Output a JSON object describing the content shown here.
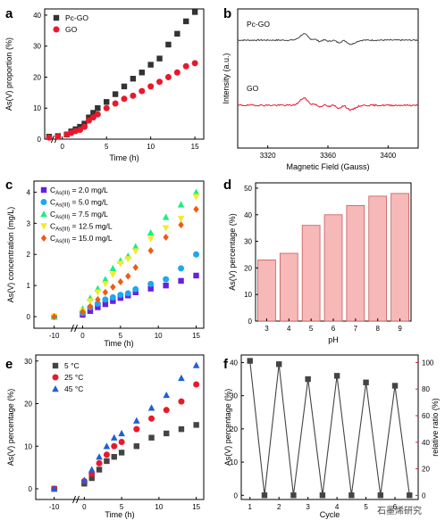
{
  "watermark": "石墨烯研究",
  "colors": {
    "black": "#333333",
    "red": "#e8192c",
    "blue": "#1f5fd6",
    "purple": "#6a1fe0",
    "cyan": "#1ea8f0",
    "green": "#19f07d",
    "yellow": "#f7e928",
    "orange": "#f25a12",
    "bar": "#f7b8b8",
    "bar_edge": "#c65b5b",
    "gray": "#444444"
  },
  "chart_data": [
    {
      "panel": "a",
      "type": "scatter",
      "xlabel": "Time (h)",
      "ylabel": "As(V) proportion (%)",
      "xlim": [
        -2,
        16
      ],
      "ylim": [
        0,
        42
      ],
      "xticks": [
        "0",
        "5",
        "10",
        "15"
      ],
      "yticks": [
        "0",
        "10",
        "20",
        "30",
        "40"
      ],
      "series": [
        {
          "name": "Pc-GO",
          "color": "black",
          "marker": "square",
          "x": [
            -1.5,
            -0.5,
            0.5,
            1,
            1.5,
            2,
            2.5,
            3,
            3.5,
            4,
            5,
            6,
            7,
            8,
            9,
            10,
            11,
            12,
            13,
            14,
            15
          ],
          "y": [
            0.8,
            1.0,
            1.5,
            2.5,
            3.2,
            4,
            5,
            7,
            8.5,
            10,
            12,
            14.5,
            17,
            19.5,
            21.5,
            24,
            26,
            30.5,
            34,
            38,
            41
          ]
        },
        {
          "name": "GO",
          "color": "red",
          "marker": "circle",
          "x": [
            -1.5,
            -0.5,
            0.5,
            1,
            1.5,
            2,
            2.5,
            3,
            3.5,
            4,
            5,
            6,
            7,
            8,
            9,
            10,
            11,
            12,
            13,
            14,
            15
          ],
          "y": [
            0.5,
            0.8,
            1.5,
            2.0,
            2.6,
            3.0,
            4.0,
            6.0,
            7.0,
            8.0,
            10.0,
            11.5,
            13.0,
            14.0,
            15.5,
            17.0,
            18.5,
            20.0,
            21.5,
            23.5,
            24.5
          ]
        }
      ]
    },
    {
      "panel": "b",
      "type": "line",
      "xlabel": "Magnetic Field (Gauss)",
      "ylabel": "Intensity (a.u.)",
      "xticks": [
        "3320",
        "3360",
        "3400"
      ],
      "xlim": [
        3300,
        3420
      ],
      "series": [
        {
          "name": "Pc-GO",
          "color": "gray"
        },
        {
          "name": "GO",
          "color": "red"
        }
      ]
    },
    {
      "panel": "c",
      "type": "scatter",
      "xlabel": "Time (h)",
      "ylabel": "As(V) concentration (mg/L)",
      "ylim": [
        0,
        4.3
      ],
      "xticks": [
        "-10",
        "0",
        "5",
        "10",
        "15"
      ],
      "yticks": [
        "0",
        "1",
        "2",
        "3",
        "4"
      ],
      "x": [
        -10,
        0,
        1,
        2,
        3,
        4,
        5,
        6,
        7,
        9,
        11,
        13,
        15
      ],
      "series": [
        {
          "name": "C_As(III) = 2.0 mg/L",
          "label_main": "C",
          "label_sub": "As(III)",
          "label_rest": " = 2.0 mg/L",
          "color": "purple",
          "marker": "square",
          "y": [
            0,
            0.06,
            0.18,
            0.3,
            0.4,
            0.5,
            0.6,
            0.68,
            0.78,
            0.9,
            1.0,
            1.15,
            1.32
          ]
        },
        {
          "name": "C_As(III) = 5.0 mg/L",
          "label_main": "C",
          "label_sub": "As(III)",
          "label_rest": " = 5.0 mg/L",
          "color": "cyan",
          "marker": "circle",
          "y": [
            0,
            0.12,
            0.3,
            0.42,
            0.55,
            0.62,
            0.7,
            0.75,
            0.88,
            1.05,
            1.2,
            1.55,
            2.0
          ]
        },
        {
          "name": "C_As(III) = 7.5 mg/L",
          "label_main": "C",
          "label_sub": "As(III)",
          "label_rest": " = 7.5 mg/L",
          "color": "green",
          "marker": "triangle",
          "y": [
            0,
            0.25,
            0.6,
            0.9,
            1.2,
            1.55,
            1.8,
            1.95,
            2.25,
            2.7,
            3.2,
            3.6,
            4.0
          ]
        },
        {
          "name": "C_As(III) = 12.5 mg/L",
          "label_main": "C",
          "label_sub": "As(III)",
          "label_rest": " = 12.5 mg/L",
          "color": "yellow",
          "marker": "triangle-down",
          "y": [
            0,
            0.18,
            0.5,
            0.78,
            1.05,
            1.35,
            1.7,
            1.85,
            2.1,
            2.5,
            2.85,
            3.15,
            3.85
          ]
        },
        {
          "name": "C_As(III) = 15.0 mg/L",
          "label_main": "C",
          "label_sub": "As(III)",
          "label_rest": " = 15.0 mg/L",
          "color": "orange",
          "marker": "diamond",
          "y": [
            0,
            0.15,
            0.32,
            0.55,
            0.78,
            0.95,
            1.12,
            1.3,
            1.58,
            2.12,
            2.55,
            2.95,
            3.45
          ]
        }
      ]
    },
    {
      "panel": "d",
      "type": "bar",
      "xlabel": "pH",
      "ylabel": "As(V) percentage (%)",
      "categories": [
        "3",
        "4",
        "5",
        "6",
        "7",
        "8",
        "9"
      ],
      "values": [
        23,
        25.5,
        36,
        40,
        43.5,
        47,
        48
      ],
      "ylim": [
        0,
        52
      ],
      "yticks": [
        "0",
        "10",
        "20",
        "30",
        "40",
        "50"
      ]
    },
    {
      "panel": "e",
      "type": "scatter",
      "xlabel": "Time (h)",
      "ylabel": "As(V) percentage (%)",
      "ylim": [
        0,
        31
      ],
      "xticks": [
        "-10",
        "0",
        "5",
        "10",
        "15"
      ],
      "yticks": [
        "0",
        "10",
        "20",
        "30"
      ],
      "x": [
        -10,
        0,
        1,
        2,
        3,
        4,
        5,
        7,
        9,
        11,
        13,
        15
      ],
      "series": [
        {
          "name": "5 °C",
          "color": "gray",
          "marker": "square",
          "y": [
            0,
            1.2,
            2.5,
            4.5,
            6.5,
            7.5,
            8.5,
            10,
            12,
            13,
            14,
            15
          ]
        },
        {
          "name": "25 °C",
          "color": "red",
          "marker": "circle",
          "y": [
            0,
            1.8,
            3.5,
            6,
            8,
            10,
            11,
            14,
            16.5,
            18.5,
            20.5,
            24.5
          ]
        },
        {
          "name": "45 °C",
          "color": "blue",
          "marker": "triangle",
          "y": [
            0,
            2.0,
            4.5,
            7.5,
            10,
            12,
            13,
            16,
            19,
            22,
            26,
            29
          ]
        }
      ]
    },
    {
      "panel": "f",
      "type": "line",
      "xlabel": "Cycle",
      "ylabel": "As(V) percentage (%)",
      "y2label": "relative ratio (%)",
      "xticks": [
        "1",
        "2",
        "3",
        "4",
        "5",
        "6"
      ],
      "ylim": [
        -1,
        42
      ],
      "yticks": [
        "0",
        "10",
        "20",
        "30",
        "40"
      ],
      "y2lim": [
        -2.4,
        105
      ],
      "y2ticks": [
        "0",
        "20",
        "40",
        "60",
        "80",
        "100"
      ],
      "x": [
        1,
        1.5,
        2,
        2.5,
        3,
        3.5,
        4,
        4.5,
        5,
        5.5,
        6,
        6.5
      ],
      "y": [
        40.5,
        0,
        39.5,
        0,
        35,
        0,
        36,
        0,
        34,
        0,
        33,
        0
      ]
    }
  ]
}
